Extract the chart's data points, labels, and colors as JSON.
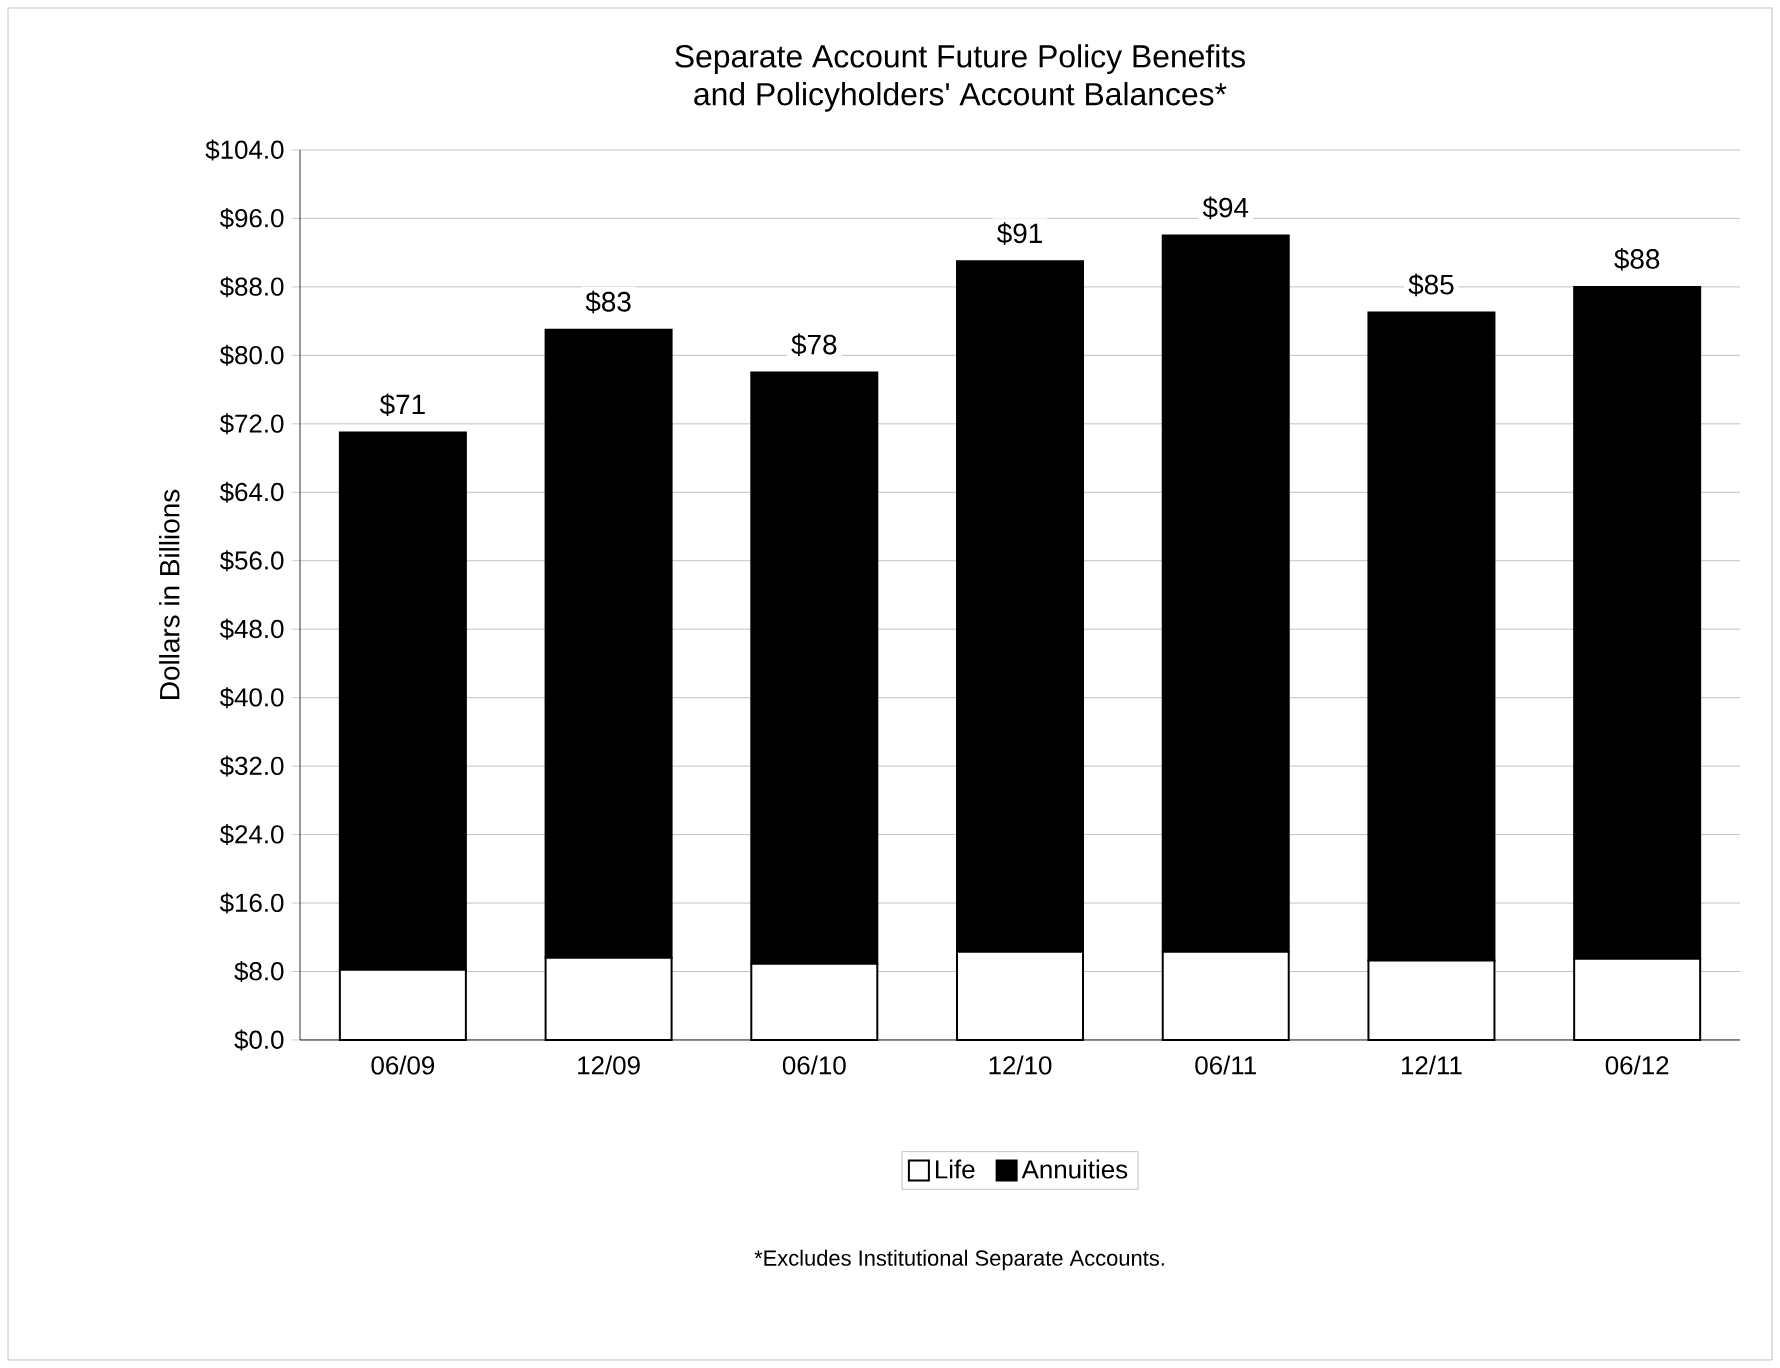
{
  "chart_data": {
    "type": "bar",
    "title": "Separate Account Future Policy Benefits\nand Policyholders' Account Balances*",
    "ylabel": "Dollars in Billions",
    "categories": [
      "06/09",
      "12/09",
      "06/10",
      "12/10",
      "06/11",
      "12/11",
      "06/12"
    ],
    "stacked": true,
    "series": [
      {
        "name": "Life",
        "color": "#ffffff",
        "values": [
          8.2,
          9.6,
          8.9,
          10.3,
          10.3,
          9.3,
          9.5
        ]
      },
      {
        "name": "Annuities",
        "color": "#000000",
        "values": [
          62.8,
          73.4,
          69.1,
          80.7,
          83.7,
          75.7,
          78.5
        ]
      }
    ],
    "totals": [
      "$71",
      "$83",
      "$78",
      "$91",
      "$94",
      "$85",
      "$88"
    ],
    "ylim": [
      0,
      104
    ],
    "yticks": [
      {
        "value": 0,
        "label": "$0.0"
      },
      {
        "value": 8,
        "label": "$8.0"
      },
      {
        "value": 16,
        "label": "$16.0"
      },
      {
        "value": 24,
        "label": "$24.0"
      },
      {
        "value": 32,
        "label": "$32.0"
      },
      {
        "value": 40,
        "label": "$40.0"
      },
      {
        "value": 48,
        "label": "$48.0"
      },
      {
        "value": 56,
        "label": "$56.0"
      },
      {
        "value": 64,
        "label": "$64.0"
      },
      {
        "value": 72,
        "label": "$72.0"
      },
      {
        "value": 80,
        "label": "$80.0"
      },
      {
        "value": 88,
        "label": "$88.0"
      },
      {
        "value": 96,
        "label": "$96.0"
      },
      {
        "value": 104,
        "label": "$104.0"
      }
    ],
    "grid": "y",
    "legend": "bottom",
    "annotations": [
      "*Excludes  Institutional Separate Accounts."
    ]
  }
}
